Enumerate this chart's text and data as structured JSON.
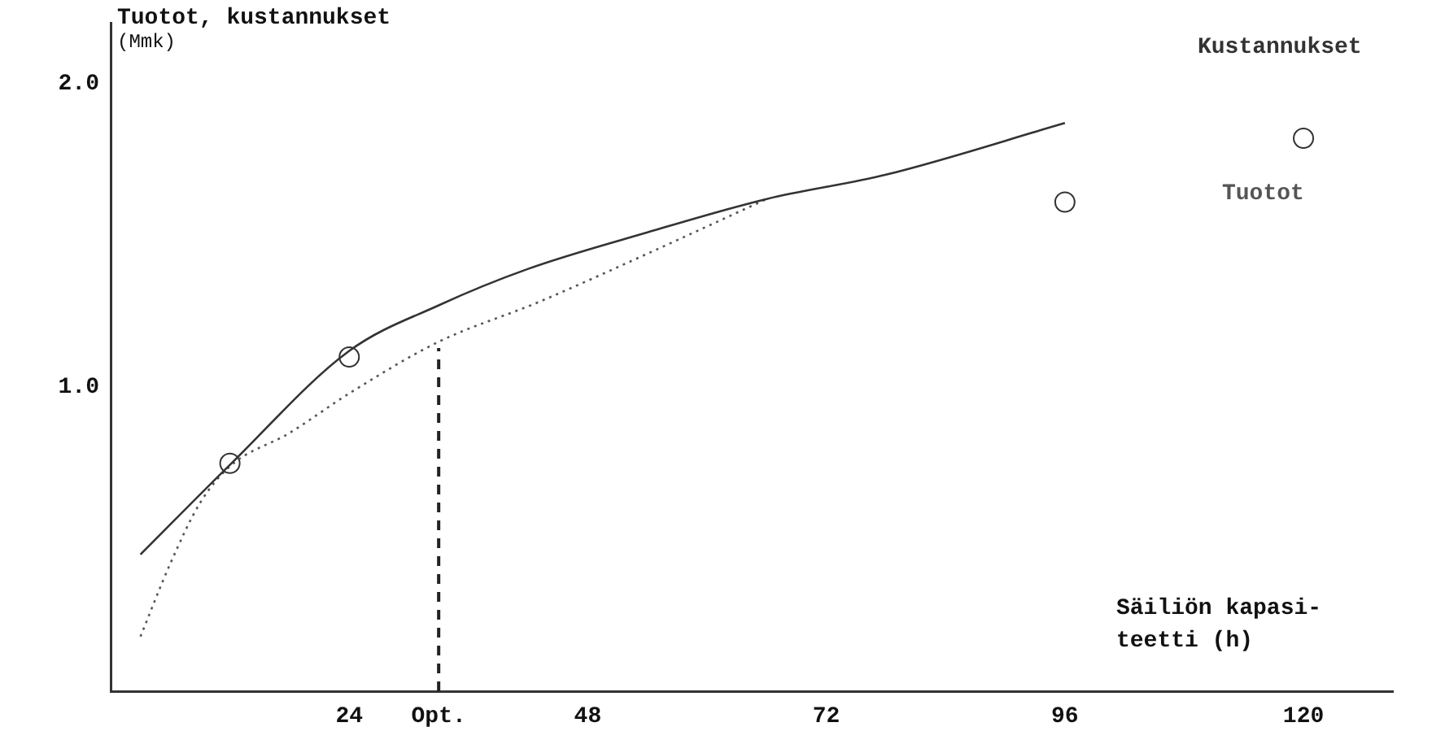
{
  "chart_data": {
    "type": "line",
    "ylabel": "Tuotot, kustannukset\n(Mmk)",
    "xlabel": "Säiliön kapasi-\nteetti (h)",
    "xlim": [
      0,
      129
    ],
    "xticks": [
      24,
      {
        "value": 33,
        "label": "Opt."
      },
      48,
      72,
      96,
      120
    ],
    "ylim": [
      0,
      2.2
    ],
    "yticks": [
      {
        "value": 1,
        "label": "1.0"
      },
      {
        "value": 2,
        "label": "2.0"
      }
    ],
    "grid": false,
    "legend": false,
    "series": [
      {
        "name": "Kustannukset",
        "color": "#333333",
        "line_style": "solid",
        "marker": "none",
        "x": [
          3,
          12,
          24,
          33,
          42,
          54,
          66,
          78,
          96
        ],
        "values": [
          0.45,
          0.745,
          1.12,
          1.27,
          1.39,
          1.51,
          1.62,
          1.7,
          1.87
        ]
      },
      {
        "name": "Tuotot",
        "color": "#555555",
        "line_style": "dotted",
        "marker": "none",
        "x": [
          3,
          6,
          9,
          12,
          18,
          24,
          33,
          43,
          54,
          66
        ],
        "values": [
          0.18,
          0.42,
          0.62,
          0.74,
          0.85,
          0.98,
          1.15,
          1.28,
          1.44,
          1.62
        ]
      },
      {
        "type": "scatter",
        "color": "#333333",
        "marker": "circle",
        "x": [
          12,
          24,
          96,
          120
        ],
        "values": [
          0.75,
          1.1,
          1.61,
          1.82
        ]
      }
    ],
    "ref_lines": [
      {
        "axis": "x",
        "value": 33,
        "color": "#222222",
        "line_style": "dashed"
      }
    ]
  }
}
